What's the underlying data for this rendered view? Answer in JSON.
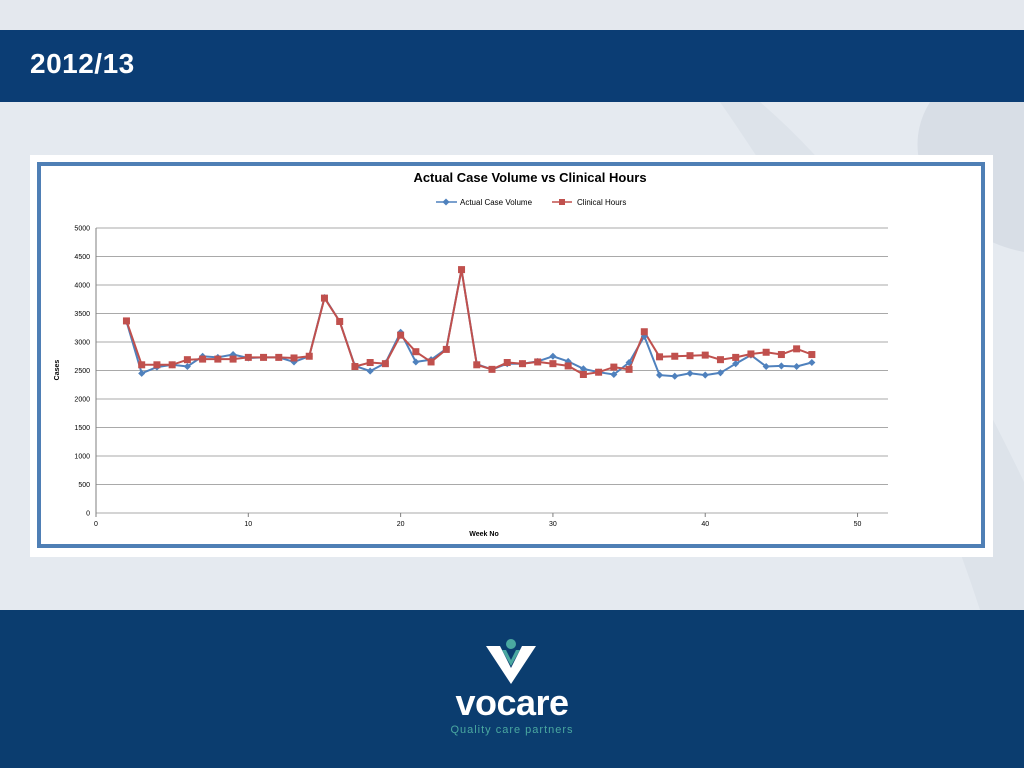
{
  "slide": {
    "title": "2012/13"
  },
  "footer": {
    "logo_text": "vocare",
    "tagline": "Quality care partners"
  },
  "colors": {
    "title_bar": "#0b3d74",
    "footer": "#0b3d6f",
    "chart_border": "#4f7fb5",
    "series_blue": "#4f81bd",
    "series_red": "#c0504d",
    "logo_teal": "#4aa8a0"
  },
  "chart_data": {
    "type": "line",
    "title": "Actual Case Volume vs Clinical Hours",
    "xlabel": "Week No",
    "ylabel": "Cases",
    "xlim": [
      0,
      52
    ],
    "ylim": [
      0,
      5000
    ],
    "x_ticks": [
      0,
      10,
      20,
      30,
      40,
      50
    ],
    "y_ticks": [
      0,
      500,
      1000,
      1500,
      2000,
      2500,
      3000,
      3500,
      4000,
      4500,
      5000
    ],
    "grid": true,
    "legend_position": "top",
    "series": [
      {
        "name": "Actual Case Volume",
        "color": "#4f81bd",
        "marker": "diamond",
        "x": [
          2,
          3,
          4,
          5,
          6,
          7,
          8,
          9,
          10,
          11,
          12,
          13,
          14,
          15,
          16,
          17,
          18,
          19,
          20,
          21,
          22,
          23,
          24,
          25,
          26,
          27,
          28,
          29,
          30,
          31,
          32,
          33,
          34,
          35,
          36,
          37,
          38,
          39,
          40,
          41,
          42,
          43,
          44,
          45,
          46,
          47
        ],
        "values": [
          3360,
          2450,
          2560,
          2600,
          2570,
          2750,
          2730,
          2780,
          2720,
          2730,
          2730,
          2650,
          2750,
          3780,
          3360,
          2580,
          2490,
          2630,
          3170,
          2650,
          2690,
          2880,
          4270,
          2610,
          2520,
          2620,
          2620,
          2660,
          2750,
          2660,
          2530,
          2470,
          2430,
          2640,
          3100,
          2420,
          2400,
          2450,
          2420,
          2460,
          2620,
          2770,
          2570,
          2580,
          2570,
          2640
        ]
      },
      {
        "name": "Clinical Hours",
        "color": "#c0504d",
        "marker": "square",
        "x": [
          2,
          3,
          4,
          5,
          6,
          7,
          8,
          9,
          10,
          11,
          12,
          13,
          14,
          15,
          16,
          17,
          18,
          19,
          20,
          21,
          22,
          23,
          24,
          25,
          26,
          27,
          28,
          29,
          30,
          31,
          32,
          33,
          34,
          35,
          36,
          37,
          38,
          39,
          40,
          41,
          42,
          43,
          44,
          45,
          46,
          47
        ],
        "values": [
          3370,
          2600,
          2600,
          2600,
          2690,
          2700,
          2700,
          2700,
          2730,
          2730,
          2730,
          2720,
          2750,
          3770,
          3360,
          2570,
          2640,
          2620,
          3120,
          2830,
          2650,
          2870,
          4270,
          2600,
          2520,
          2640,
          2620,
          2650,
          2620,
          2580,
          2430,
          2470,
          2560,
          2520,
          3180,
          2740,
          2750,
          2760,
          2770,
          2690,
          2730,
          2790,
          2820,
          2780,
          2880,
          2780
        ]
      }
    ]
  }
}
